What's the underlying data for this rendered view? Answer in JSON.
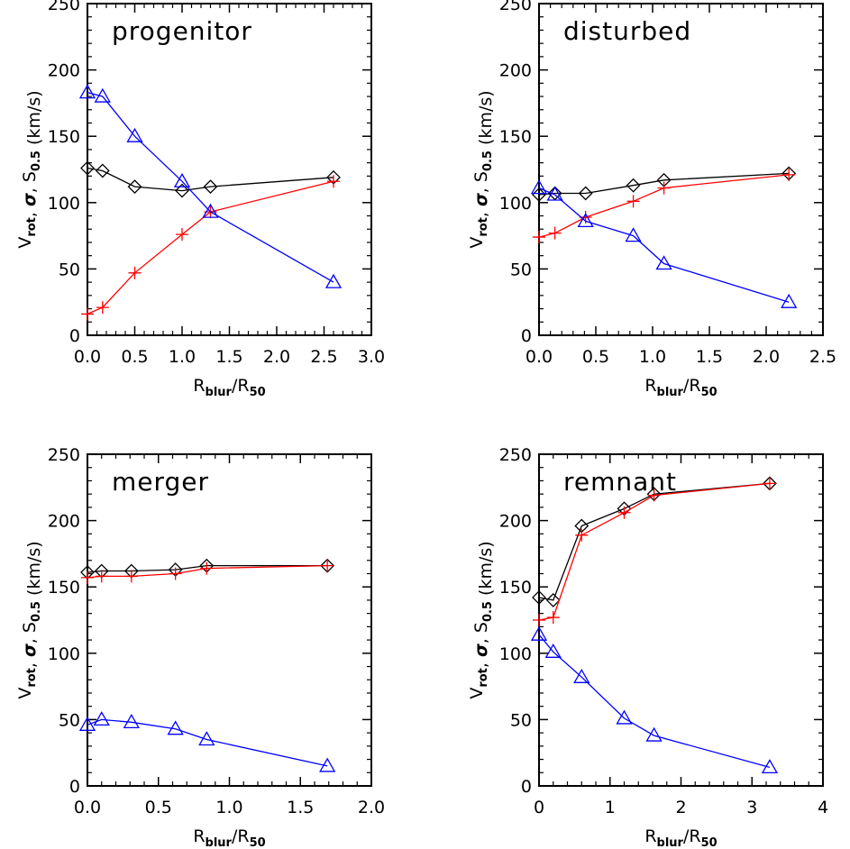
{
  "chart_data": [
    {
      "type": "line",
      "title": "progenitor",
      "xlabel": "R_blur/R_50",
      "ylabel": "V_rot, σ, S_0.5 (km/s)",
      "xlim": [
        0,
        3.0
      ],
      "ylim": [
        0,
        250
      ],
      "xticks": [
        "0.0",
        "0.5",
        "1.0",
        "1.5",
        "2.0",
        "2.5",
        "3.0"
      ],
      "yticks": [
        "0",
        "50",
        "100",
        "150",
        "200",
        "250"
      ],
      "x": [
        0.0,
        0.16,
        0.5,
        1.0,
        1.3,
        2.6
      ],
      "series": [
        {
          "color": "#000000",
          "marker": "diamond",
          "values": [
            126,
            124,
            112,
            109,
            112,
            119
          ]
        },
        {
          "color": "#ff0000",
          "marker": "plus",
          "values": [
            16,
            21,
            47,
            76,
            93,
            116
          ]
        },
        {
          "color": "#0000ff",
          "marker": "triangle",
          "values": [
            183,
            180,
            150,
            116,
            93,
            40
          ]
        }
      ]
    },
    {
      "type": "line",
      "title": "disturbed",
      "xlabel": "R_blur/R_50",
      "ylabel": "V_rot, σ, S_0.5 (km/s)",
      "xlim": [
        0,
        2.5
      ],
      "ylim": [
        0,
        250
      ],
      "xticks": [
        "0.0",
        "0.5",
        "1.0",
        "1.5",
        "2.0",
        "2.5"
      ],
      "yticks": [
        "0",
        "50",
        "100",
        "150",
        "200",
        "250"
      ],
      "x": [
        0.0,
        0.14,
        0.41,
        0.83,
        1.1,
        2.2
      ],
      "series": [
        {
          "color": "#000000",
          "marker": "diamond",
          "values": [
            106,
            107,
            107,
            113,
            117,
            122
          ]
        },
        {
          "color": "#ff0000",
          "marker": "plus",
          "values": [
            74,
            77,
            89,
            101,
            111,
            121
          ]
        },
        {
          "color": "#0000ff",
          "marker": "triangle",
          "values": [
            111,
            106,
            86,
            75,
            54,
            25
          ]
        }
      ]
    },
    {
      "type": "line",
      "title": "merger",
      "xlabel": "R_blur/R_50",
      "ylabel": "V_rot, σ, S_0.5 (km/s)",
      "xlim": [
        0,
        2.0
      ],
      "ylim": [
        0,
        250
      ],
      "xticks": [
        "0.0",
        "0.5",
        "1.0",
        "1.5",
        "2.0"
      ],
      "yticks": [
        "0",
        "50",
        "100",
        "150",
        "200",
        "250"
      ],
      "x": [
        0.0,
        0.1,
        0.31,
        0.62,
        0.84,
        1.69
      ],
      "series": [
        {
          "color": "#000000",
          "marker": "diamond",
          "values": [
            161,
            162,
            162,
            163,
            166,
            166
          ]
        },
        {
          "color": "#ff0000",
          "marker": "plus",
          "values": [
            157,
            158,
            158,
            160,
            164,
            166
          ]
        },
        {
          "color": "#0000ff",
          "marker": "triangle",
          "values": [
            46,
            50,
            48,
            43,
            35,
            15
          ]
        }
      ]
    },
    {
      "type": "line",
      "title": "remnant",
      "xlabel": "R_blur/R_50",
      "ylabel": "V_rot, σ, S_0.5 (km/s)",
      "xlim": [
        0,
        4
      ],
      "ylim": [
        0,
        250
      ],
      "xticks": [
        "0",
        "1",
        "2",
        "3",
        "4"
      ],
      "yticks": [
        "0",
        "50",
        "100",
        "150",
        "200",
        "250"
      ],
      "x": [
        0.0,
        0.2,
        0.6,
        1.2,
        1.62,
        3.25
      ],
      "series": [
        {
          "color": "#000000",
          "marker": "diamond",
          "values": [
            142,
            140,
            196,
            209,
            220,
            228
          ]
        },
        {
          "color": "#ff0000",
          "marker": "plus",
          "values": [
            125,
            127,
            189,
            206,
            219,
            228
          ]
        },
        {
          "color": "#0000ff",
          "marker": "triangle",
          "values": [
            114,
            101,
            82,
            51,
            38,
            14
          ]
        }
      ]
    }
  ]
}
